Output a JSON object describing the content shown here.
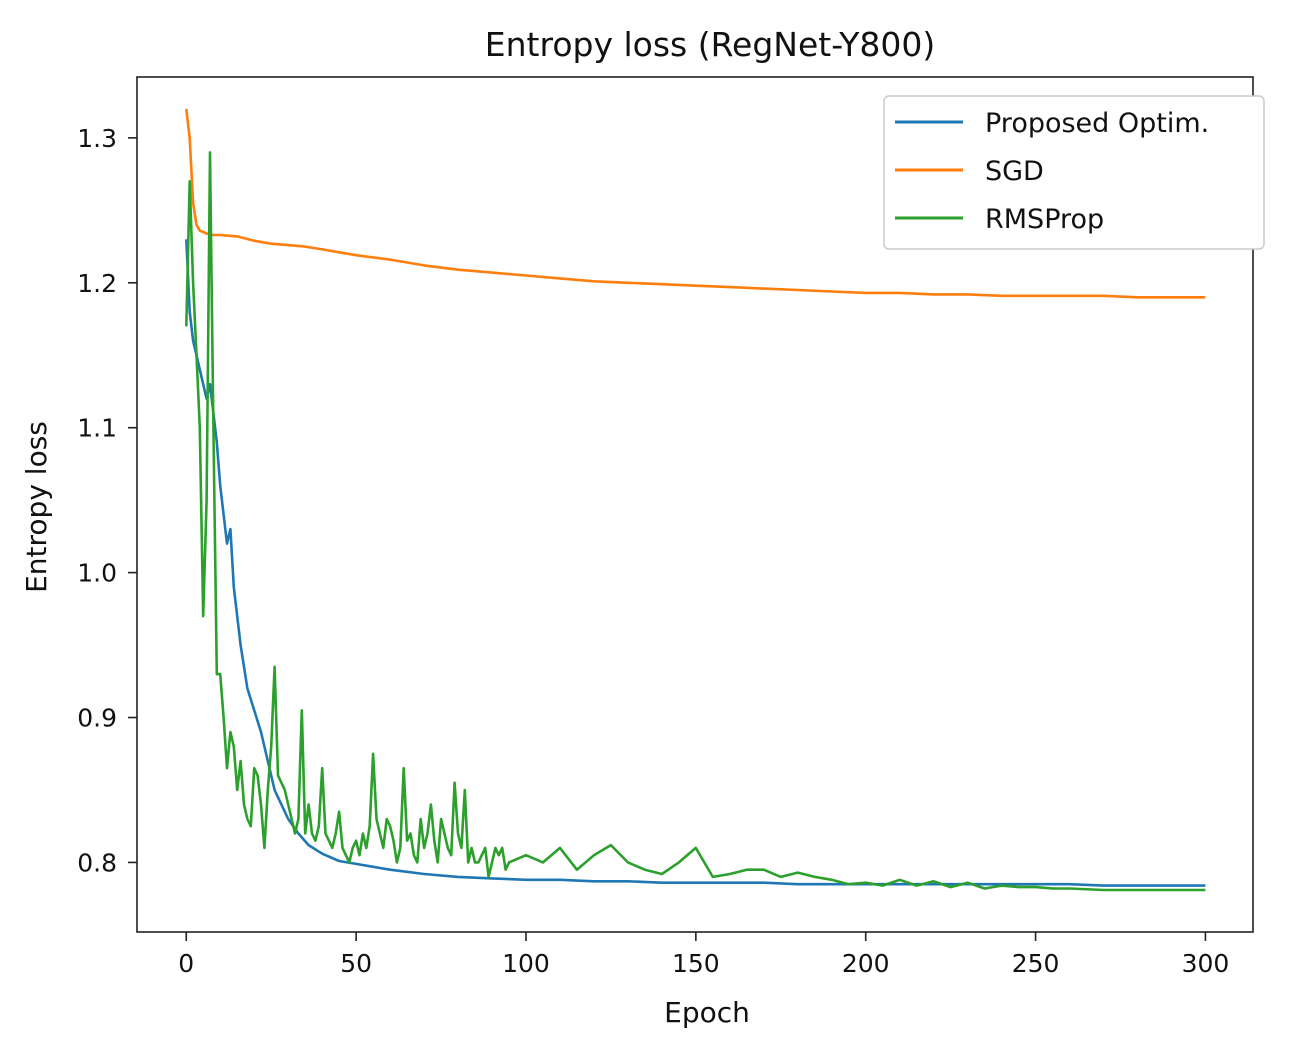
{
  "chart_data": {
    "type": "line",
    "title": "Entropy loss (RegNet-Y800)",
    "xlabel": "Epoch",
    "ylabel": "Entropy loss",
    "xlim": [
      -14.5,
      314
    ],
    "ylim": [
      0.752,
      1.342
    ],
    "grid": false,
    "legend_position": "top-right",
    "x_ticks": [
      0,
      50,
      100,
      150,
      200,
      250,
      300
    ],
    "y_ticks": [
      0.8,
      0.9,
      1.0,
      1.1,
      1.2,
      1.3
    ],
    "x_tick_labels": [
      "0",
      "50",
      "100",
      "150",
      "200",
      "250",
      "300"
    ],
    "y_tick_labels": [
      "0.8",
      "0.9",
      "1.0",
      "1.1",
      "1.2",
      "1.3"
    ],
    "series": [
      {
        "name": "Proposed Optim.",
        "color": "#1f77b4",
        "x": [
          0,
          1,
          2,
          3,
          4,
          5,
          6,
          7,
          8,
          9,
          10,
          11,
          12,
          13,
          14,
          15,
          16,
          18,
          20,
          22,
          24,
          26,
          28,
          30,
          33,
          36,
          40,
          45,
          50,
          55,
          60,
          70,
          80,
          90,
          100,
          110,
          120,
          130,
          140,
          150,
          160,
          170,
          180,
          190,
          200,
          210,
          220,
          230,
          240,
          250,
          260,
          270,
          280,
          290,
          300
        ],
        "values": [
          1.23,
          1.18,
          1.16,
          1.15,
          1.14,
          1.13,
          1.12,
          1.13,
          1.11,
          1.09,
          1.06,
          1.04,
          1.02,
          1.03,
          0.99,
          0.97,
          0.95,
          0.92,
          0.905,
          0.89,
          0.87,
          0.85,
          0.84,
          0.83,
          0.82,
          0.812,
          0.806,
          0.801,
          0.799,
          0.797,
          0.795,
          0.792,
          0.79,
          0.789,
          0.788,
          0.788,
          0.787,
          0.787,
          0.786,
          0.786,
          0.786,
          0.786,
          0.785,
          0.785,
          0.785,
          0.785,
          0.785,
          0.785,
          0.785,
          0.785,
          0.785,
          0.784,
          0.784,
          0.784,
          0.784
        ]
      },
      {
        "name": "SGD",
        "color": "#ff7f0e",
        "x": [
          0,
          1,
          2,
          3,
          4,
          6,
          8,
          10,
          15,
          20,
          25,
          30,
          35,
          40,
          45,
          50,
          60,
          70,
          80,
          90,
          100,
          110,
          120,
          130,
          140,
          150,
          160,
          170,
          180,
          190,
          200,
          210,
          220,
          230,
          240,
          250,
          260,
          270,
          280,
          290,
          300
        ],
        "values": [
          1.32,
          1.3,
          1.255,
          1.24,
          1.236,
          1.234,
          1.233,
          1.233,
          1.232,
          1.229,
          1.227,
          1.226,
          1.225,
          1.223,
          1.221,
          1.219,
          1.216,
          1.212,
          1.209,
          1.207,
          1.205,
          1.203,
          1.201,
          1.2,
          1.199,
          1.198,
          1.197,
          1.196,
          1.195,
          1.194,
          1.193,
          1.193,
          1.192,
          1.192,
          1.191,
          1.191,
          1.191,
          1.191,
          1.19,
          1.19,
          1.19
        ]
      },
      {
        "name": "RMSProp",
        "color": "#2ca02c",
        "x": [
          0,
          1,
          2,
          3,
          4,
          5,
          6,
          7,
          8,
          9,
          10,
          11,
          12,
          13,
          14,
          15,
          16,
          17,
          18,
          19,
          20,
          21,
          22,
          23,
          24,
          25,
          26,
          27,
          28,
          29,
          30,
          31,
          32,
          33,
          34,
          35,
          36,
          37,
          38,
          39,
          40,
          41,
          42,
          43,
          44,
          45,
          46,
          47,
          48,
          49,
          50,
          51,
          52,
          53,
          54,
          55,
          56,
          57,
          58,
          59,
          60,
          61,
          62,
          63,
          64,
          65,
          66,
          67,
          68,
          69,
          70,
          71,
          72,
          73,
          74,
          75,
          76,
          77,
          78,
          79,
          80,
          81,
          82,
          83,
          84,
          85,
          86,
          87,
          88,
          89,
          90,
          91,
          92,
          93,
          94,
          95,
          100,
          105,
          110,
          115,
          120,
          125,
          130,
          135,
          140,
          145,
          150,
          155,
          160,
          165,
          170,
          175,
          180,
          185,
          190,
          195,
          200,
          205,
          210,
          215,
          220,
          225,
          230,
          235,
          240,
          245,
          250,
          255,
          260,
          270,
          280,
          290,
          300
        ],
        "values": [
          1.17,
          1.27,
          1.2,
          1.15,
          1.1,
          0.97,
          1.05,
          1.29,
          1.1,
          0.93,
          0.93,
          0.9,
          0.865,
          0.89,
          0.88,
          0.85,
          0.87,
          0.84,
          0.83,
          0.825,
          0.865,
          0.86,
          0.84,
          0.81,
          0.85,
          0.88,
          0.935,
          0.86,
          0.855,
          0.85,
          0.84,
          0.83,
          0.82,
          0.83,
          0.905,
          0.82,
          0.84,
          0.82,
          0.815,
          0.825,
          0.865,
          0.82,
          0.815,
          0.81,
          0.82,
          0.835,
          0.81,
          0.805,
          0.8,
          0.81,
          0.815,
          0.805,
          0.82,
          0.81,
          0.825,
          0.875,
          0.83,
          0.82,
          0.81,
          0.83,
          0.825,
          0.815,
          0.8,
          0.81,
          0.865,
          0.815,
          0.82,
          0.805,
          0.8,
          0.83,
          0.81,
          0.82,
          0.84,
          0.815,
          0.8,
          0.83,
          0.82,
          0.81,
          0.805,
          0.855,
          0.82,
          0.81,
          0.85,
          0.8,
          0.81,
          0.8,
          0.8,
          0.805,
          0.81,
          0.79,
          0.8,
          0.81,
          0.805,
          0.81,
          0.795,
          0.8,
          0.805,
          0.8,
          0.81,
          0.795,
          0.805,
          0.812,
          0.8,
          0.795,
          0.792,
          0.8,
          0.81,
          0.79,
          0.792,
          0.795,
          0.795,
          0.79,
          0.793,
          0.79,
          0.788,
          0.785,
          0.786,
          0.784,
          0.788,
          0.784,
          0.787,
          0.783,
          0.786,
          0.782,
          0.784,
          0.783,
          0.783,
          0.782,
          0.782,
          0.781,
          0.781,
          0.781,
          0.781
        ]
      }
    ]
  }
}
